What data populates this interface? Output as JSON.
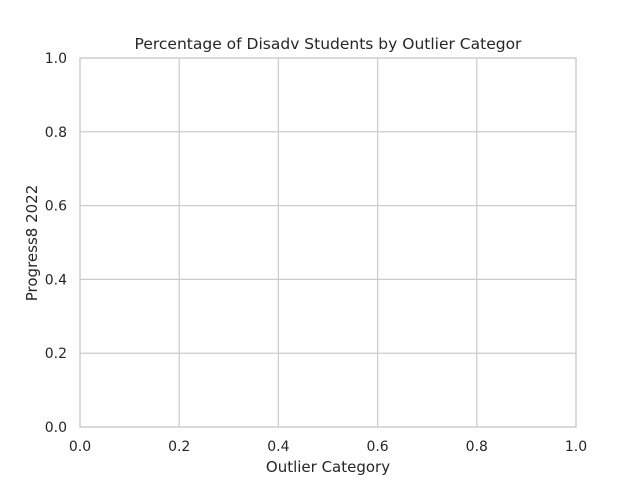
{
  "chart_data": {
    "type": "scatter",
    "title": "Percentage of Disadv Students by Outlier Categor",
    "xlabel": "Outlier Category",
    "ylabel": "Progress8 2022",
    "xlim": [
      0.0,
      1.0
    ],
    "ylim": [
      0.0,
      1.0
    ],
    "x_ticks": [
      "0.0",
      "0.2",
      "0.4",
      "0.6",
      "0.8",
      "1.0"
    ],
    "y_ticks": [
      "0.0",
      "0.2",
      "0.4",
      "0.6",
      "0.8",
      "1.0"
    ],
    "series": [],
    "grid": true,
    "legend": "none",
    "colors": {
      "background": "#ffffff",
      "grid": "#cccccc",
      "spine": "#cccccc",
      "text": "#262626"
    }
  }
}
